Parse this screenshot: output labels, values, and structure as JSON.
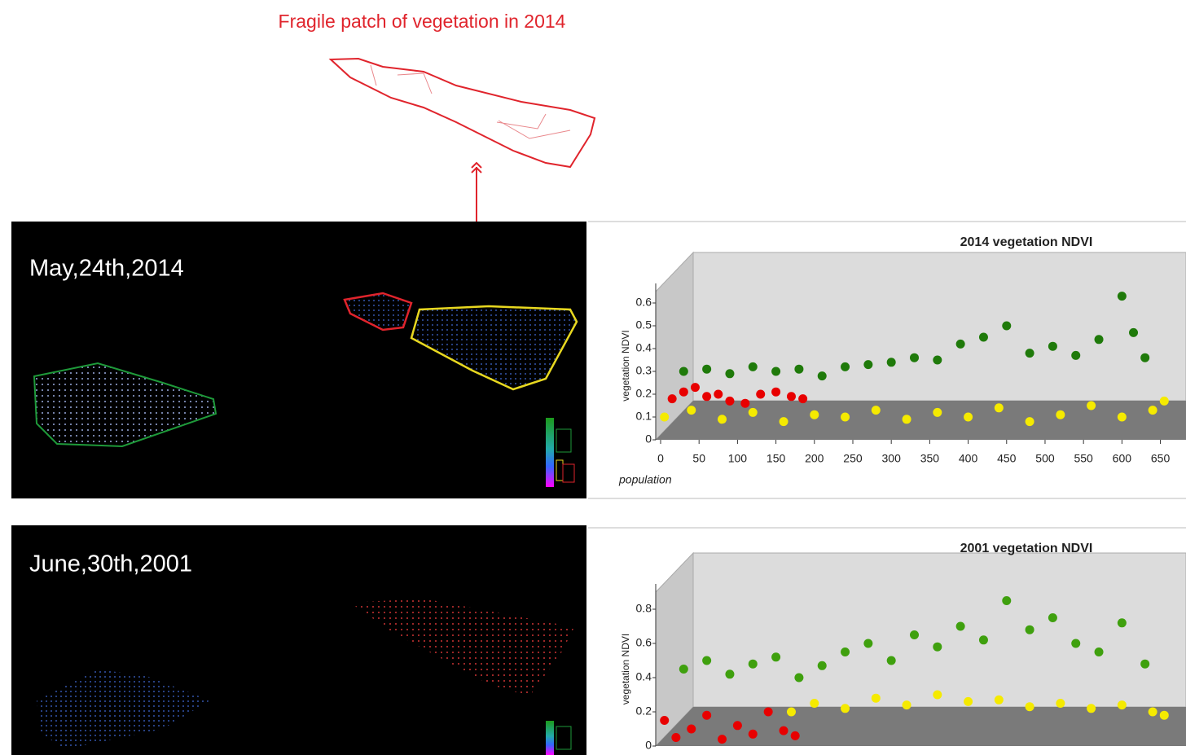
{
  "annotation": "Fragile patch of vegetation in 2014",
  "panels": [
    {
      "date": "May,24th,2014"
    },
    {
      "date": "June,30th,2001"
    }
  ],
  "chart_data": [
    {
      "type": "scatter",
      "title": "2014 vegetation NDVI",
      "x_label": "population",
      "y_label": "vegetation NDVI",
      "xlim": [
        0,
        660
      ],
      "xticks": [
        0,
        50,
        100,
        150,
        200,
        250,
        300,
        350,
        400,
        450,
        500,
        550,
        600,
        650
      ],
      "ylim": [
        0,
        0.65
      ],
      "yticks": [
        0,
        0.1,
        0.2,
        0.3,
        0.4,
        0.5,
        0.6
      ],
      "series": [
        {
          "color": "#1f7a0a",
          "x": [
            30,
            60,
            90,
            120,
            150,
            180,
            210,
            240,
            270,
            300,
            330,
            360,
            390,
            420,
            450,
            480,
            510,
            540,
            570,
            600,
            615,
            630
          ],
          "values": [
            0.3,
            0.31,
            0.29,
            0.32,
            0.3,
            0.31,
            0.28,
            0.32,
            0.33,
            0.34,
            0.36,
            0.35,
            0.42,
            0.45,
            0.5,
            0.38,
            0.41,
            0.37,
            0.44,
            0.63,
            0.47,
            0.36
          ]
        },
        {
          "color": "#f5ea00",
          "x": [
            5,
            40,
            80,
            120,
            160,
            200,
            240,
            280,
            320,
            360,
            400,
            440,
            480,
            520,
            560,
            600,
            640,
            655
          ],
          "values": [
            0.1,
            0.13,
            0.09,
            0.12,
            0.08,
            0.11,
            0.1,
            0.13,
            0.09,
            0.12,
            0.1,
            0.14,
            0.08,
            0.11,
            0.15,
            0.1,
            0.13,
            0.17
          ]
        },
        {
          "color": "#e80000",
          "x": [
            15,
            30,
            45,
            60,
            75,
            90,
            110,
            130,
            150,
            170,
            185
          ],
          "values": [
            0.18,
            0.21,
            0.23,
            0.19,
            0.2,
            0.17,
            0.16,
            0.2,
            0.21,
            0.19,
            0.18
          ]
        }
      ]
    },
    {
      "type": "scatter",
      "title": "2001 vegetation NDVI",
      "y_label": "vegetation NDVI",
      "xlim": [
        0,
        660
      ],
      "ylim": [
        0,
        0.9
      ],
      "yticks": [
        0,
        0.2,
        0.4,
        0.6,
        0.8
      ],
      "series": [
        {
          "color": "#3fa00e",
          "x": [
            30,
            60,
            90,
            120,
            150,
            180,
            210,
            240,
            270,
            300,
            330,
            360,
            390,
            420,
            450,
            480,
            510,
            540,
            570,
            600,
            630
          ],
          "values": [
            0.45,
            0.5,
            0.42,
            0.48,
            0.52,
            0.4,
            0.47,
            0.55,
            0.6,
            0.5,
            0.65,
            0.58,
            0.7,
            0.62,
            0.85,
            0.68,
            0.75,
            0.6,
            0.55,
            0.72,
            0.48
          ]
        },
        {
          "color": "#f5ea00",
          "x": [
            170,
            200,
            240,
            280,
            320,
            360,
            400,
            440,
            480,
            520,
            560,
            600,
            640,
            655
          ],
          "values": [
            0.2,
            0.25,
            0.22,
            0.28,
            0.24,
            0.3,
            0.26,
            0.27,
            0.23,
            0.25,
            0.22,
            0.24,
            0.2,
            0.18
          ]
        },
        {
          "color": "#e80000",
          "x": [
            5,
            20,
            40,
            60,
            80,
            100,
            120,
            140,
            160,
            175
          ],
          "values": [
            0.15,
            0.05,
            0.1,
            0.18,
            0.04,
            0.12,
            0.07,
            0.2,
            0.09,
            0.06
          ]
        }
      ]
    }
  ]
}
